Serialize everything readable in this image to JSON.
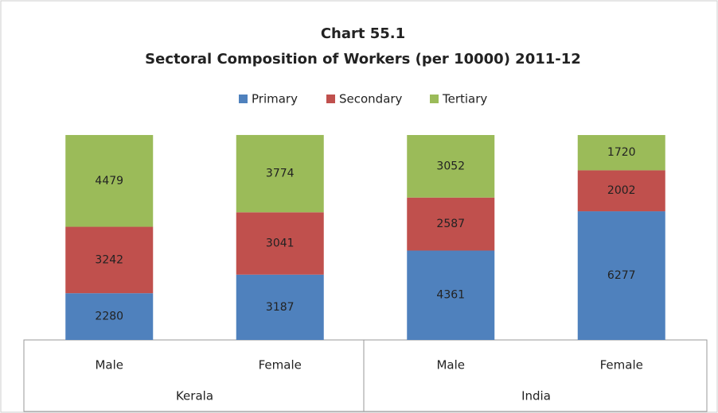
{
  "chart_data": {
    "type": "stacked-bar",
    "title": "Chart 55.1",
    "subtitle": "Sectoral Composition of Workers (per 10000)  2011-12",
    "categories": [
      "Male",
      "Female",
      "Male",
      "Female"
    ],
    "groups": [
      "Kerala",
      "India"
    ],
    "series": [
      {
        "name": "Primary",
        "color": "#4f81bd",
        "values": [
          2280,
          3187,
          4361,
          6277
        ]
      },
      {
        "name": "Secondary",
        "color": "#c0504d",
        "values": [
          3242,
          3041,
          2587,
          2002
        ]
      },
      {
        "name": "Tertiary",
        "color": "#9bbb59",
        "values": [
          4479,
          3774,
          3052,
          1720
        ]
      }
    ],
    "ylim": [
      0,
      10000
    ]
  }
}
